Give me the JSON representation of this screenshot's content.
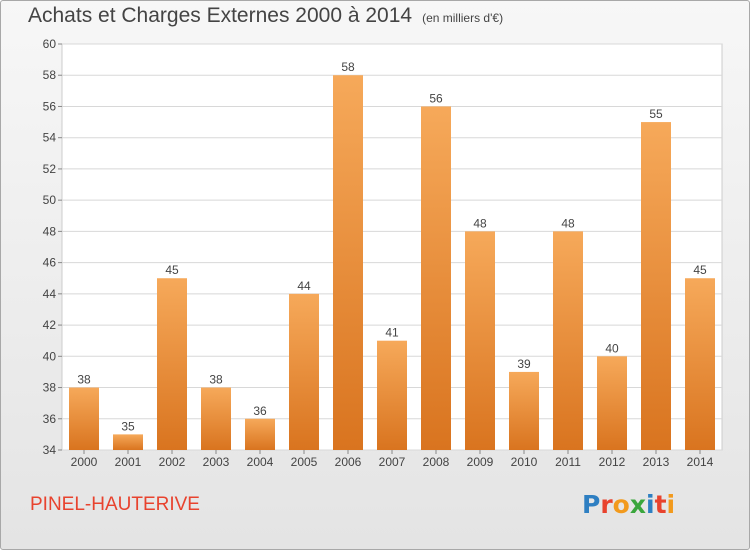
{
  "header": {
    "title": "Achats et Charges Externes 2000 à 2014",
    "subtitle": "(en milliers d'€)"
  },
  "footer": {
    "commune": "PINEL-HAUTERIVE",
    "logo_letters": [
      "P",
      "r",
      "o",
      "x",
      "i",
      "t",
      "i"
    ],
    "logo_colors": [
      "#2e7fc2",
      "#e8432e",
      "#f29a1d",
      "#3aa63c",
      "#2e7fc2",
      "#e8432e",
      "#f29a1d"
    ]
  },
  "chart_data": {
    "type": "bar",
    "categories": [
      "2000",
      "2001",
      "2002",
      "2003",
      "2004",
      "2005",
      "2006",
      "2007",
      "2008",
      "2009",
      "2010",
      "2011",
      "2012",
      "2013",
      "2014"
    ],
    "values": [
      38,
      35,
      45,
      38,
      36,
      44,
      58,
      41,
      56,
      48,
      39,
      48,
      40,
      55,
      45
    ],
    "ylim": [
      34,
      60
    ],
    "yticks": [
      34,
      36,
      38,
      40,
      42,
      44,
      46,
      48,
      50,
      52,
      54,
      56,
      58,
      60
    ],
    "grid": true,
    "bar_color_light": "#f6a95a",
    "bar_color_dark": "#d9741f"
  }
}
